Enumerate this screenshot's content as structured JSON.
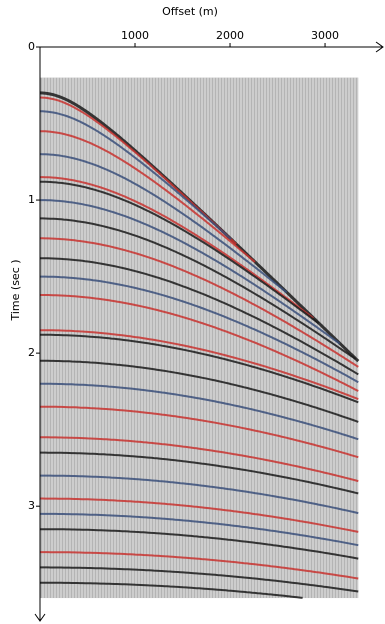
{
  "chart_data": {
    "type": "seismic",
    "x_label": "Offset (m)",
    "y_label": "Time (sec )",
    "xlim": [
      0,
      3610
    ],
    "ylim": [
      0,
      3.75
    ],
    "xticks": [
      1000,
      2000,
      3000
    ],
    "yticks": [
      0,
      1,
      2,
      3
    ],
    "offset_range": [
      0,
      3350
    ],
    "time_range": [
      0.2,
      3.6
    ],
    "background": "#b4b4b4",
    "events": [
      {
        "t0": 0.3,
        "velocity": 1650,
        "color": "#1a1a1a"
      },
      {
        "t0": 0.33,
        "velocity": 1660,
        "color": "#c8322f"
      },
      {
        "t0": 0.42,
        "velocity": 1700,
        "color": "#3a4f7a"
      },
      {
        "t0": 0.55,
        "velocity": 1750,
        "color": "#c8322f"
      },
      {
        "t0": 0.7,
        "velocity": 1800,
        "color": "#3a4f7a"
      },
      {
        "t0": 0.85,
        "velocity": 1850,
        "color": "#c8322f"
      },
      {
        "t0": 0.88,
        "velocity": 1860,
        "color": "#1a1a1a"
      },
      {
        "t0": 1.0,
        "velocity": 1900,
        "color": "#3a4f7a"
      },
      {
        "t0": 1.12,
        "velocity": 1950,
        "color": "#1a1a1a"
      },
      {
        "t0": 1.25,
        "velocity": 2000,
        "color": "#c8322f"
      },
      {
        "t0": 1.38,
        "velocity": 2050,
        "color": "#1a1a1a"
      },
      {
        "t0": 1.5,
        "velocity": 2100,
        "color": "#3a4f7a"
      },
      {
        "t0": 1.62,
        "velocity": 2150,
        "color": "#c8322f"
      },
      {
        "t0": 1.85,
        "velocity": 2450,
        "color": "#c8322f"
      },
      {
        "t0": 1.88,
        "velocity": 2460,
        "color": "#1a1a1a"
      },
      {
        "t0": 2.05,
        "velocity": 2500,
        "color": "#1a1a1a"
      },
      {
        "t0": 2.2,
        "velocity": 2550,
        "color": "#3a4f7a"
      },
      {
        "t0": 2.35,
        "velocity": 2600,
        "color": "#c8322f"
      },
      {
        "t0": 2.55,
        "velocity": 2700,
        "color": "#c8322f"
      },
      {
        "t0": 2.65,
        "velocity": 2750,
        "color": "#1a1a1a"
      },
      {
        "t0": 2.8,
        "velocity": 2800,
        "color": "#3a4f7a"
      },
      {
        "t0": 2.95,
        "velocity": 2900,
        "color": "#c8322f"
      },
      {
        "t0": 3.05,
        "velocity": 2950,
        "color": "#3a4f7a"
      },
      {
        "t0": 3.15,
        "velocity": 3000,
        "color": "#1a1a1a"
      },
      {
        "t0": 3.3,
        "velocity": 3100,
        "color": "#c8322f"
      },
      {
        "t0": 3.4,
        "velocity": 3200,
        "color": "#1a1a1a"
      },
      {
        "t0": 3.5,
        "velocity": 3300,
        "color": "#1a1a1a"
      }
    ]
  }
}
